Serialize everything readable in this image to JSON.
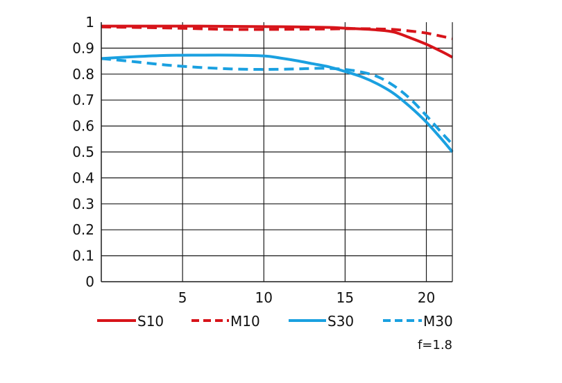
{
  "chart_data": {
    "type": "line",
    "xlim": [
      0,
      21.6
    ],
    "ylim": [
      0,
      1
    ],
    "x_ticks": [
      {
        "value": 5,
        "label": "5"
      },
      {
        "value": 10,
        "label": "10"
      },
      {
        "value": 15,
        "label": "15"
      },
      {
        "value": 20,
        "label": "20"
      }
    ],
    "y_ticks": [
      {
        "value": 0,
        "label": "0"
      },
      {
        "value": 0.1,
        "label": "0.1"
      },
      {
        "value": 0.2,
        "label": "0.2"
      },
      {
        "value": 0.3,
        "label": "0.3"
      },
      {
        "value": 0.4,
        "label": "0.4"
      },
      {
        "value": 0.5,
        "label": "0.5"
      },
      {
        "value": 0.6,
        "label": "0.6"
      },
      {
        "value": 0.7,
        "label": "0.7"
      },
      {
        "value": 0.8,
        "label": "0.8"
      },
      {
        "value": 0.9,
        "label": "0.9"
      },
      {
        "value": 1,
        "label": "1"
      }
    ],
    "grid": true,
    "legend_position": "bottom",
    "annotation": "f=1.8",
    "series": [
      {
        "name": "S10",
        "color": "#d7141a",
        "dash": "solid",
        "x": [
          0,
          2,
          4,
          6,
          8,
          10,
          12,
          14,
          15,
          16,
          17,
          18,
          19,
          20,
          21,
          21.6
        ],
        "y": [
          0.985,
          0.985,
          0.985,
          0.985,
          0.984,
          0.983,
          0.982,
          0.98,
          0.977,
          0.974,
          0.97,
          0.962,
          0.94,
          0.915,
          0.885,
          0.865
        ]
      },
      {
        "name": "M10",
        "color": "#d7141a",
        "dash": "dashed",
        "x": [
          0,
          2,
          4,
          6,
          8,
          10,
          12,
          14,
          15,
          16,
          17,
          18,
          19,
          20,
          21,
          21.6
        ],
        "y": [
          0.982,
          0.98,
          0.978,
          0.975,
          0.972,
          0.972,
          0.973,
          0.974,
          0.975,
          0.975,
          0.974,
          0.972,
          0.966,
          0.958,
          0.945,
          0.937
        ]
      },
      {
        "name": "S30",
        "color": "#1aa0e0",
        "dash": "solid",
        "x": [
          0,
          2,
          4,
          6,
          8,
          10,
          11,
          12,
          13,
          14,
          15,
          16,
          17,
          18,
          19,
          20,
          21,
          21.6
        ],
        "y": [
          0.86,
          0.867,
          0.872,
          0.873,
          0.873,
          0.87,
          0.862,
          0.852,
          0.84,
          0.828,
          0.81,
          0.79,
          0.762,
          0.725,
          0.674,
          0.615,
          0.545,
          0.5
        ]
      },
      {
        "name": "M30",
        "color": "#1aa0e0",
        "dash": "dashed",
        "x": [
          0,
          2,
          4,
          6,
          8,
          10,
          12,
          13,
          14,
          15,
          16,
          17,
          18,
          19,
          20,
          21,
          21.6
        ],
        "y": [
          0.86,
          0.848,
          0.835,
          0.826,
          0.82,
          0.818,
          0.82,
          0.822,
          0.822,
          0.818,
          0.808,
          0.79,
          0.755,
          0.705,
          0.64,
          0.57,
          0.53
        ]
      }
    ]
  }
}
